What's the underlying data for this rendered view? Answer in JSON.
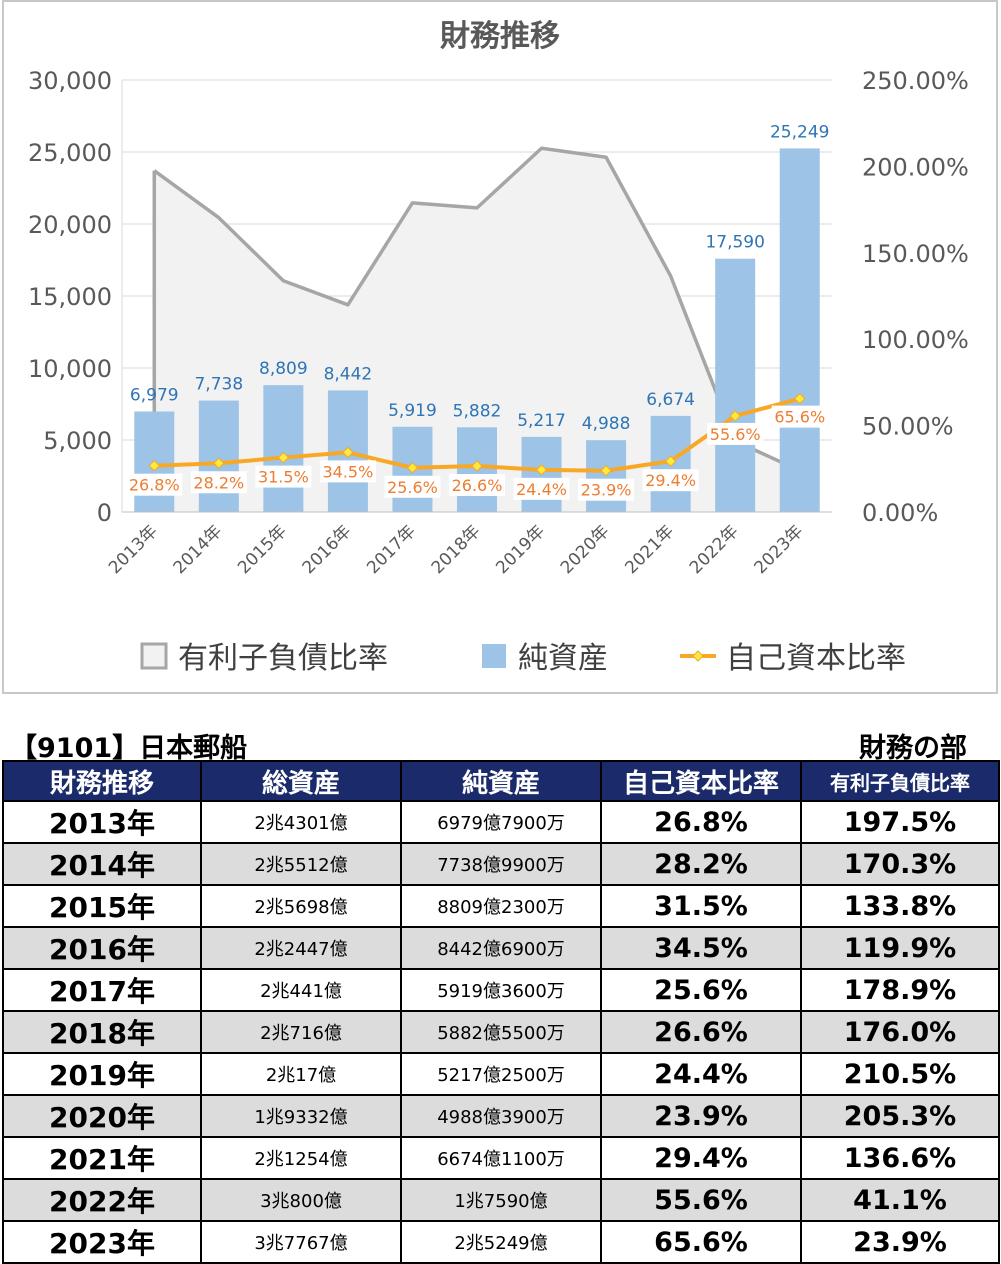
{
  "chart_data": {
    "type": "bar",
    "title": "財務推移",
    "categories": [
      "2013年",
      "2014年",
      "2015年",
      "2016年",
      "2017年",
      "2018年",
      "2019年",
      "2020年",
      "2021年",
      "2022年",
      "2023年"
    ],
    "y_left": {
      "ylim": [
        0,
        30000
      ],
      "ticks": [
        "0",
        "5,000",
        "10,000",
        "15,000",
        "20,000",
        "25,000",
        "30,000"
      ]
    },
    "y_right": {
      "ylim": [
        0,
        250
      ],
      "ticks": [
        "0.00%",
        "50.00%",
        "100.00%",
        "150.00%",
        "200.00%",
        "250.00%"
      ]
    },
    "grid": true,
    "legend_position": "bottom",
    "series": [
      {
        "name": "有利子負債比率",
        "kind": "area",
        "axis": "right",
        "color": "#a6a6a6",
        "fill": "#f2f2f2",
        "values": [
          197.5,
          170.3,
          133.8,
          119.9,
          178.9,
          176.0,
          210.5,
          205.3,
          136.6,
          41.1,
          23.9
        ]
      },
      {
        "name": "純資産",
        "kind": "bar",
        "axis": "left",
        "color": "#9dc3e6",
        "values": [
          6979,
          7738,
          8809,
          8442,
          5919,
          5882,
          5217,
          4988,
          6674,
          17590,
          25249
        ],
        "labels": [
          "6,979",
          "7,738",
          "8,809",
          "8,442",
          "5,919",
          "5,882",
          "5,217",
          "4,988",
          "6,674",
          "17,590",
          "25,249"
        ]
      },
      {
        "name": "自己資本比率",
        "kind": "line",
        "axis": "right",
        "color": "#f9a825",
        "values": [
          26.8,
          28.2,
          31.5,
          34.5,
          25.6,
          26.6,
          24.4,
          23.9,
          29.4,
          55.6,
          65.6
        ],
        "labels": [
          "26.8%",
          "28.2%",
          "31.5%",
          "34.5%",
          "25.6%",
          "26.6%",
          "24.4%",
          "23.9%",
          "29.4%",
          "55.6%",
          "65.6%"
        ]
      }
    ]
  },
  "company_title": "【9101】日本郵船",
  "section_title": "財務の部",
  "table": {
    "headers": [
      "財務推移",
      "総資産",
      "純資産",
      "自己資本比率",
      "有利子負債比率"
    ],
    "rows": [
      [
        "2013年",
        "2兆4301億",
        "6979億7900万",
        "26.8%",
        "197.5%"
      ],
      [
        "2014年",
        "2兆5512億",
        "7738億9900万",
        "28.2%",
        "170.3%"
      ],
      [
        "2015年",
        "2兆5698億",
        "8809億2300万",
        "31.5%",
        "133.8%"
      ],
      [
        "2016年",
        "2兆2447億",
        "8442億6900万",
        "34.5%",
        "119.9%"
      ],
      [
        "2017年",
        "2兆441億",
        "5919億3600万",
        "25.6%",
        "178.9%"
      ],
      [
        "2018年",
        "2兆716億",
        "5882億5500万",
        "26.6%",
        "176.0%"
      ],
      [
        "2019年",
        "2兆17億",
        "5217億2500万",
        "24.4%",
        "210.5%"
      ],
      [
        "2020年",
        "1兆9332億",
        "4988億3900万",
        "23.9%",
        "205.3%"
      ],
      [
        "2021年",
        "2兆1254億",
        "6674億1100万",
        "29.4%",
        "136.6%"
      ],
      [
        "2022年",
        "3兆800億",
        "1兆7590億",
        "55.6%",
        "41.1%"
      ],
      [
        "2023年",
        "3兆7767億",
        "2兆5249億",
        "65.6%",
        "23.9%"
      ]
    ]
  }
}
